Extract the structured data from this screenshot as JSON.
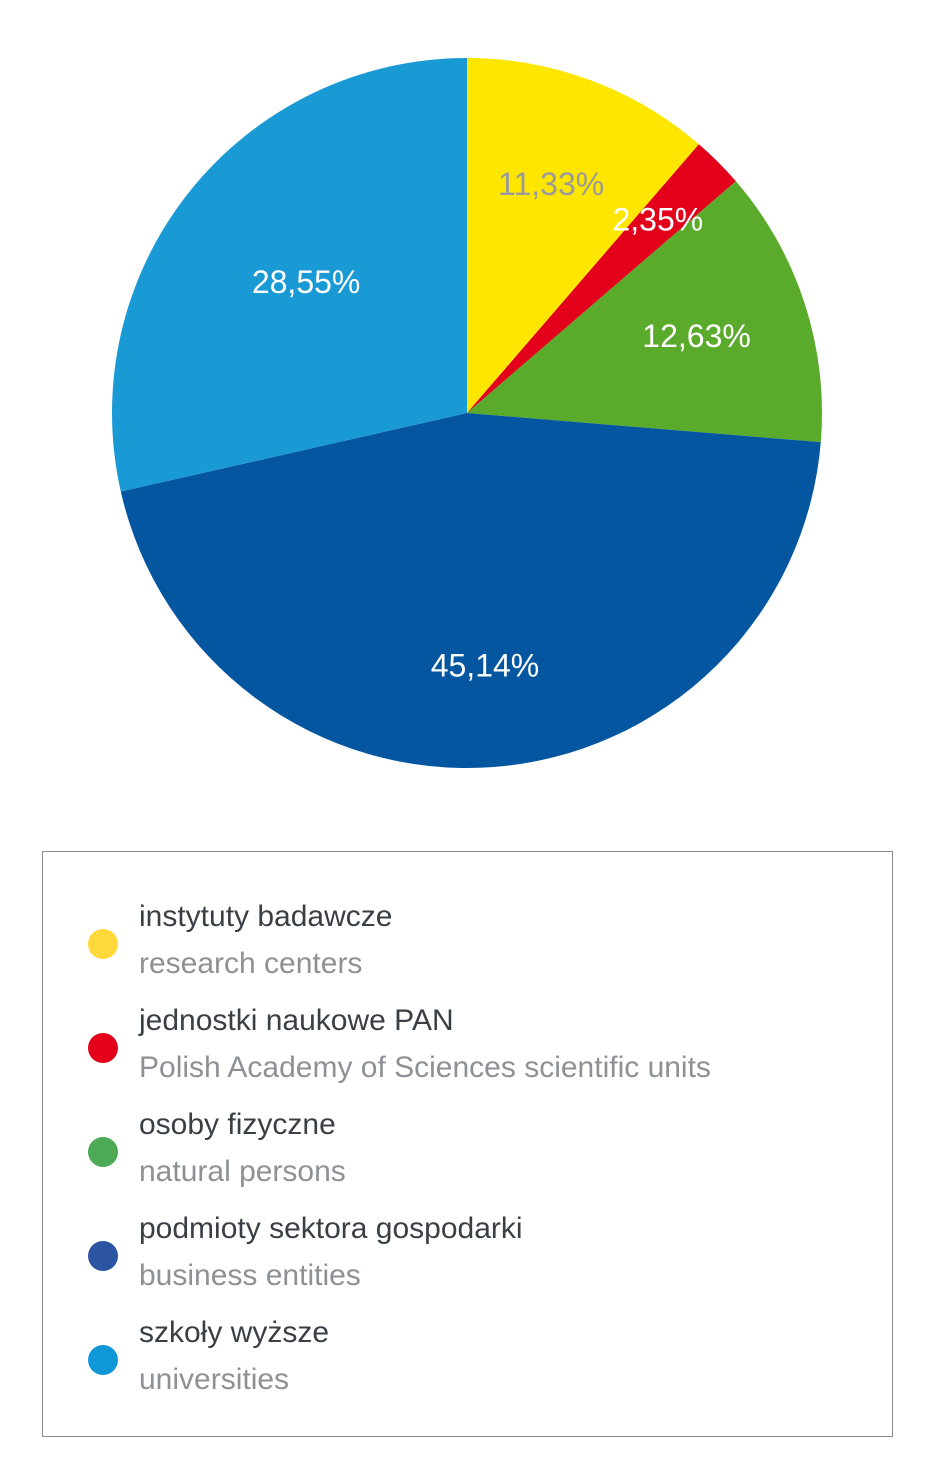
{
  "chart_data": {
    "type": "pie",
    "slices": [
      {
        "value": 11.33,
        "label": "11,33%",
        "color": "#ffe600",
        "label_color": "#9a9a9a",
        "legend_pl": "instytuty badawcze",
        "legend_en": "research centers",
        "legend_color": "#ffd93b"
      },
      {
        "value": 2.35,
        "label": "2,35%",
        "color": "#e2001a",
        "label_color": "#ffffff",
        "legend_pl": "jednostki naukowe PAN",
        "legend_en": "Polish Academy of Sciences scientific units",
        "legend_color": "#e2001a"
      },
      {
        "value": 12.63,
        "label": "12,63%",
        "color": "#5aaa2c",
        "label_color": "#ffffff",
        "legend_pl": "osoby fizyczne",
        "legend_en": "natural persons",
        "legend_color": "#4daa56"
      },
      {
        "value": 45.14,
        "label": "45,14%",
        "color": "#03569f",
        "label_color": "#ffffff",
        "legend_pl": "podmioty sektora gospodarki",
        "legend_en": "business entities",
        "legend_color": "#2b55a3"
      },
      {
        "value": 28.55,
        "label": "28,55%",
        "color": "#1a9ad4",
        "label_color": "#ffffff",
        "legend_pl": "szkoły wyższe",
        "legend_en": "universities",
        "legend_color": "#0f97d8"
      }
    ],
    "start": "12 o'clock",
    "direction": "clockwise",
    "legend_position": "bottom"
  }
}
